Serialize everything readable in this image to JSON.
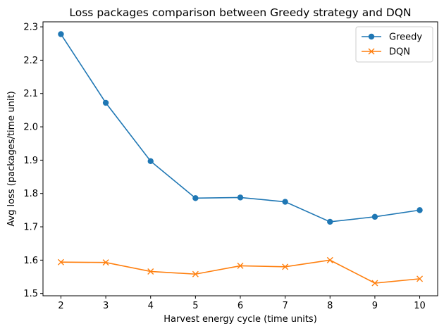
{
  "chart_data": {
    "type": "line",
    "title": "Loss packages comparison between Greedy strategy and DQN",
    "xlabel": "Harvest energy cycle (time units)",
    "ylabel": "Avg loss (packages/time unit)",
    "x": [
      2,
      3,
      4,
      5,
      6,
      7,
      8,
      9,
      10
    ],
    "xticks": [
      "2",
      "3",
      "4",
      "5",
      "6",
      "7",
      "8",
      "9",
      "10"
    ],
    "yticks": [
      "1.5",
      "1.6",
      "1.7",
      "1.8",
      "1.9",
      "2.0",
      "2.1",
      "2.2",
      "2.3"
    ],
    "xlim": [
      1.6,
      10.4
    ],
    "ylim": [
      1.493,
      2.315
    ],
    "grid": false,
    "legend_position": "upper right",
    "series": [
      {
        "name": "Greedy",
        "color": "#1f77b4",
        "marker": "circle",
        "values": [
          2.278,
          2.072,
          1.897,
          1.786,
          1.788,
          1.775,
          1.715,
          1.73,
          1.75
        ]
      },
      {
        "name": "DQN",
        "color": "#ff7f0e",
        "marker": "x",
        "values": [
          1.594,
          1.593,
          1.566,
          1.558,
          1.583,
          1.58,
          1.6,
          1.531,
          1.544
        ]
      }
    ]
  }
}
